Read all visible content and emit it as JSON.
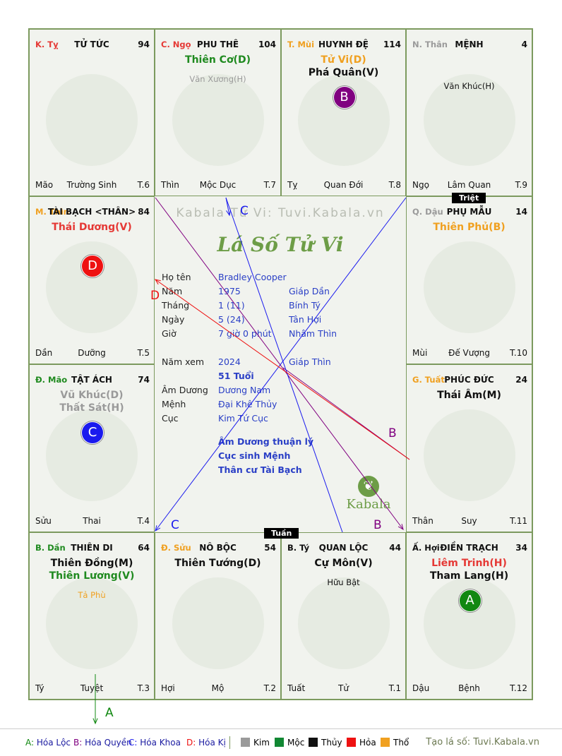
{
  "chart_data": {
    "type": "table",
    "title": "Lá Số Tử Vi",
    "watermark": "Kabala Tử Vi: Tuvi.Kabala.vn",
    "palaces": [
      {
        "id": "ty",
        "can": "K. Tỵ",
        "can_color": "#e53935",
        "name": "TỬ TỨC",
        "score": "94",
        "stars": [],
        "minor": [],
        "badge": null,
        "bottom_left": "Mão",
        "bottom_center": "Trường Sinh",
        "bottom_right": "T.6"
      },
      {
        "id": "ngo",
        "can": "C. Ngọ",
        "can_color": "#e53935",
        "name": "PHU THÊ",
        "score": "104",
        "stars": [
          {
            "text": "Thiên Cơ(D)",
            "color": "#1f8a1f"
          }
        ],
        "minor": [
          {
            "text": "Văn Xương(H)",
            "color": "#9a9a9a"
          }
        ],
        "badge": null,
        "bottom_left": "Thìn",
        "bottom_center": "Mộc Dục",
        "bottom_right": "T.7"
      },
      {
        "id": "mui",
        "can": "T. Mùi",
        "can_color": "#f0a020",
        "name": "HUYNH ĐỆ",
        "score": "114",
        "stars": [
          {
            "text": "Tử Vi(D)",
            "color": "#f0a020"
          },
          {
            "text": "Phá Quân(V)",
            "color": "#111111"
          }
        ],
        "minor": [],
        "badge": {
          "letter": "B",
          "color": "#800080"
        },
        "bottom_left": "Tỵ",
        "bottom_center": "Quan Đới",
        "bottom_right": "T.8"
      },
      {
        "id": "than",
        "can": "N. Thân",
        "can_color": "#9a9a9a",
        "name": "MỆNH",
        "score": "4",
        "stars": [],
        "minor": [
          {
            "text": "Văn Khúc(H)",
            "color": "#111111"
          }
        ],
        "badge": null,
        "bottom_left": "Ngọ",
        "bottom_center": "Lâm Quan",
        "bottom_right": "T.9"
      },
      {
        "id": "thin",
        "can": "M. Thìn",
        "can_color": "#f0a020",
        "name": "TÀI BẠCH <THÂN>",
        "score": "84",
        "stars": [
          {
            "text": "Thái Dương(V)",
            "color": "#e53935"
          }
        ],
        "minor": [],
        "badge": {
          "letter": "D",
          "color": "#ee1111"
        },
        "bottom_left": "Dần",
        "bottom_center": "Dưỡng",
        "bottom_right": "T.5"
      },
      {
        "id": "dau",
        "can": "Q. Dậu",
        "can_color": "#9a9a9a",
        "name": "PHỤ MẪU",
        "score": "14",
        "stars": [
          {
            "text": "Thiên Phủ(B)",
            "color": "#f0a020"
          }
        ],
        "minor": [],
        "badge": null,
        "bottom_left": "Mùi",
        "bottom_center": "Đế Vượng",
        "bottom_right": "T.10"
      },
      {
        "id": "mao",
        "can": "Đ. Mão",
        "can_color": "#1f8a1f",
        "name": "TẬT ÁCH",
        "score": "74",
        "stars": [
          {
            "text": "Vũ Khúc(D)",
            "color": "#9a9a9a"
          },
          {
            "text": "Thất Sát(H)",
            "color": "#9a9a9a"
          }
        ],
        "minor": [],
        "badge": {
          "letter": "C",
          "color": "#1a1aee"
        },
        "bottom_left": "Sửu",
        "bottom_center": "Thai",
        "bottom_right": "T.4"
      },
      {
        "id": "tuat",
        "can": "G. Tuất",
        "can_color": "#f0a020",
        "name": "PHÚC ĐỨC",
        "score": "24",
        "stars": [
          {
            "text": "Thái Âm(M)",
            "color": "#111111"
          }
        ],
        "minor": [],
        "badge": null,
        "bottom_left": "Thân",
        "bottom_center": "Suy",
        "bottom_right": "T.11"
      },
      {
        "id": "dan",
        "can": "B. Dần",
        "can_color": "#1f8a1f",
        "name": "THIÊN DI",
        "score": "64",
        "stars": [
          {
            "text": "Thiên Đồng(M)",
            "color": "#111111"
          },
          {
            "text": "Thiên Lương(V)",
            "color": "#1f8a1f"
          }
        ],
        "minor": [
          {
            "text": "Tả Phù",
            "color": "#f0a020"
          }
        ],
        "badge": null,
        "bottom_left": "Tý",
        "bottom_center": "Tuyệt",
        "bottom_right": "T.3"
      },
      {
        "id": "suu",
        "can": "Đ. Sửu",
        "can_color": "#f0a020",
        "name": "NÔ BỘC",
        "score": "54",
        "stars": [
          {
            "text": "Thiên Tướng(D)",
            "color": "#111111"
          }
        ],
        "minor": [],
        "badge": null,
        "bottom_left": "Hợi",
        "bottom_center": "Mộ",
        "bottom_right": "T.2"
      },
      {
        "id": "tyy",
        "can": "B. Tý",
        "can_color": "#111111",
        "name": "QUAN LỘC",
        "score": "44",
        "stars": [
          {
            "text": "Cự Môn(V)",
            "color": "#111111"
          }
        ],
        "minor": [
          {
            "text": "Hữu Bật",
            "color": "#111111"
          }
        ],
        "badge": null,
        "bottom_left": "Tuất",
        "bottom_center": "Tử",
        "bottom_right": "T.1"
      },
      {
        "id": "hoi",
        "can": "Ấ. Hợi",
        "can_color": "#111111",
        "name": "ĐIỀN TRẠCH",
        "score": "34",
        "stars": [
          {
            "text": "Liêm Trinh(H)",
            "color": "#e53935"
          },
          {
            "text": "Tham Lang(H)",
            "color": "#111111"
          }
        ],
        "minor": [],
        "badge": {
          "letter": "A",
          "color": "#118811"
        },
        "bottom_left": "Dậu",
        "bottom_center": "Bệnh",
        "bottom_right": "T.12"
      }
    ],
    "tags": {
      "triet": "Triệt",
      "tuan": "Tuần"
    },
    "info": [
      {
        "label": "Họ tên",
        "v1": "Bradley Cooper",
        "v2": ""
      },
      {
        "label": "Năm",
        "v1": "1975",
        "v2": "Giáp Dần"
      },
      {
        "label": "Tháng",
        "v1": "1  (11)",
        "v2": "Bính Tý"
      },
      {
        "label": "Ngày",
        "v1": "5  (24)",
        "v2": "Tân Hợi"
      },
      {
        "label": "Giờ",
        "v1": "7 giờ 0 phút",
        "v2": "Nhâm Thìn"
      },
      {
        "label": "Năm xem",
        "v1": "2024",
        "v2": "Giáp Thìn"
      },
      {
        "label": "",
        "v1": "51 Tuổi",
        "v2": ""
      },
      {
        "label": "Âm Dương",
        "v1": "Dương Nam",
        "v2": ""
      },
      {
        "label": "Mệnh",
        "v1": "Đại Khê Thủy",
        "v2": ""
      },
      {
        "label": "Cục",
        "v1": "Kim Tứ Cục",
        "v2": ""
      }
    ],
    "notes": [
      "Âm Dương thuận lý",
      "Cục sinh Mệnh",
      "Thân cư Tài Bạch"
    ],
    "kabala_logo": "Kabala",
    "arrows": [
      {
        "label": "A",
        "color": "#118811"
      },
      {
        "label": "B",
        "color": "#800080"
      },
      {
        "label": "C",
        "color": "#1a1aee"
      },
      {
        "label": "D",
        "color": "#ee1111"
      }
    ]
  },
  "legend": {
    "hoa": [
      {
        "key": "A:",
        "text": "Hóa Lộc",
        "color": "#118811"
      },
      {
        "key": "B:",
        "text": "Hóa Quyền",
        "color": "#800080"
      },
      {
        "key": "C:",
        "text": "Hóa Khoa",
        "color": "#1a1aee"
      },
      {
        "key": "D:",
        "text": "Hóa Kị",
        "color": "#ee1111"
      }
    ],
    "elements": [
      {
        "text": "Kim",
        "color": "#9a9a9a"
      },
      {
        "text": "Mộc",
        "color": "#118833"
      },
      {
        "text": "Thủy",
        "color": "#111111"
      },
      {
        "text": "Hỏa",
        "color": "#ee1111"
      },
      {
        "text": "Thổ",
        "color": "#f0a020"
      }
    ],
    "credit": "Tạo lá số: Tuvi.Kabala.vn"
  }
}
